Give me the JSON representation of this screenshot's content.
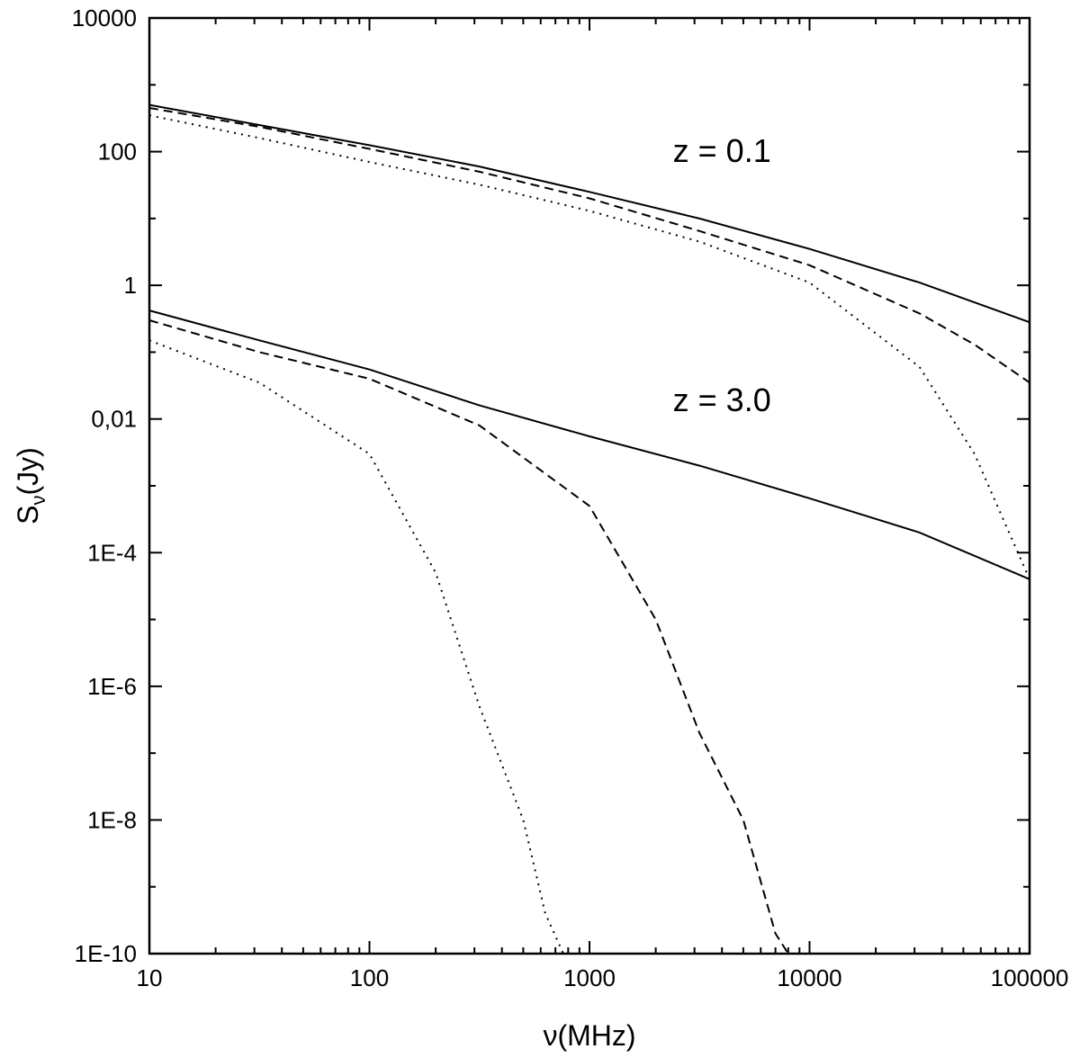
{
  "chart_data": {
    "type": "line",
    "xlabel": "ν(MHz)",
    "ylabel_main": "S",
    "ylabel_sub": "ν",
    "ylabel_unit": "(Jy)",
    "xscale": "log",
    "yscale": "log",
    "xlim": [
      10,
      100000
    ],
    "ylim": [
      1e-10,
      10000
    ],
    "grid": false,
    "x_ticks": [
      {
        "value": 10,
        "label": "10"
      },
      {
        "value": 100,
        "label": "100"
      },
      {
        "value": 1000,
        "label": "1000"
      },
      {
        "value": 10000,
        "label": "10000"
      },
      {
        "value": 100000,
        "label": "100000"
      }
    ],
    "y_ticks": [
      {
        "value": 10000,
        "label": "10000"
      },
      {
        "value": 100,
        "label": "100"
      },
      {
        "value": 1,
        "label": "1"
      },
      {
        "value": 0.01,
        "label": "0,01"
      },
      {
        "value": 0.0001,
        "label": "1E-4"
      },
      {
        "value": 1e-06,
        "label": "1E-6"
      },
      {
        "value": 1e-08,
        "label": "1E-8"
      },
      {
        "value": 1e-10,
        "label": "1E-10"
      }
    ],
    "annotations": [
      {
        "text": "z = 0.1",
        "x": 4000,
        "y": 70
      },
      {
        "text": "z = 3.0",
        "x": 4000,
        "y": 0.013
      }
    ],
    "series": [
      {
        "group": "z = 0.1",
        "style": "solid",
        "x": [
          10,
          31.6,
          100,
          316,
          1000,
          3160,
          10000,
          31600,
          100000
        ],
        "y": [
          500,
          250,
          125,
          60,
          25,
          10,
          3.5,
          1.1,
          0.28
        ]
      },
      {
        "group": "z = 0.1",
        "style": "dashed",
        "x": [
          10,
          31.6,
          100,
          316,
          1000,
          3160,
          10000,
          31600,
          56200,
          100000
        ],
        "y": [
          450,
          235,
          110,
          50,
          20,
          6.5,
          2,
          0.38,
          0.13,
          0.035
        ]
      },
      {
        "group": "z = 0.1",
        "style": "dotted",
        "x": [
          10,
          31.6,
          100,
          316,
          1000,
          3160,
          10000,
          31600,
          56200,
          100000
        ],
        "y": [
          350,
          160,
          70,
          32,
          13,
          4.5,
          1.1,
          0.06,
          0.003,
          4e-05
        ]
      },
      {
        "group": "z = 3.0",
        "style": "solid",
        "x": [
          10,
          31.6,
          100,
          316,
          1000,
          3160,
          10000,
          31600,
          100000
        ],
        "y": [
          0.42,
          0.15,
          0.055,
          0.016,
          0.0055,
          0.002,
          0.00065,
          0.0002,
          4e-05
        ]
      },
      {
        "group": "z = 3.0",
        "style": "dashed",
        "x": [
          10,
          31.6,
          100,
          316,
          1000,
          2000,
          3160,
          5000,
          7000,
          8000
        ],
        "y": [
          0.3,
          0.1,
          0.04,
          0.008,
          0.0005,
          1e-05,
          2e-07,
          1e-08,
          2e-10,
          1e-10
        ]
      },
      {
        "group": "z = 3.0",
        "style": "dotted",
        "x": [
          10,
          31.6,
          100,
          200,
          316,
          500,
          630,
          760
        ],
        "y": [
          0.15,
          0.035,
          0.003,
          5e-05,
          5e-07,
          1e-08,
          4e-10,
          1e-10
        ]
      }
    ]
  }
}
